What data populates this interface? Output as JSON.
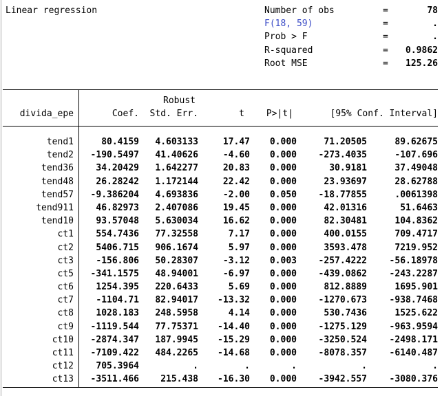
{
  "title": "Linear regression",
  "colors": {
    "background": "#ffffff",
    "text": "#000000",
    "link_blue": "#3a4bc6",
    "rule": "#000000",
    "window_border": "#a8a8a8"
  },
  "stats": [
    {
      "label": "Number of obs",
      "eq": "=",
      "value": "78",
      "link": false
    },
    {
      "label": "F(18, 59)",
      "eq": "=",
      "value": ".",
      "link": true
    },
    {
      "label": "Prob > F",
      "eq": "=",
      "value": ".",
      "link": false
    },
    {
      "label": "R-squared",
      "eq": "=",
      "value": "0.9862",
      "link": false
    },
    {
      "label": "Root MSE",
      "eq": "=",
      "value": "125.26",
      "link": false
    }
  ],
  "table": {
    "depvar": "divida_epe",
    "header_top": "Robust",
    "columns": {
      "coef": "Coef.",
      "se": "Std. Err.",
      "t": "t",
      "p": "P>|t|",
      "ci": "[95% Conf. Interval]"
    },
    "rows": [
      {
        "var": "tend1",
        "coef": "80.4159",
        "se": "4.603133",
        "t": "17.47",
        "p": "0.000",
        "lo": "71.20505",
        "hi": "89.62675"
      },
      {
        "var": "tend2",
        "coef": "-190.5497",
        "se": "41.40626",
        "t": "-4.60",
        "p": "0.000",
        "lo": "-273.4035",
        "hi": "-107.696"
      },
      {
        "var": "tend36",
        "coef": "34.20429",
        "se": "1.642277",
        "t": "20.83",
        "p": "0.000",
        "lo": "30.9181",
        "hi": "37.49048"
      },
      {
        "var": "tend48",
        "coef": "26.28242",
        "se": "1.172144",
        "t": "22.42",
        "p": "0.000",
        "lo": "23.93697",
        "hi": "28.62788"
      },
      {
        "var": "tend57",
        "coef": "-9.386204",
        "se": "4.693836",
        "t": "-2.00",
        "p": "0.050",
        "lo": "-18.77855",
        "hi": ".0061398"
      },
      {
        "var": "tend911",
        "coef": "46.82973",
        "se": "2.407086",
        "t": "19.45",
        "p": "0.000",
        "lo": "42.01316",
        "hi": "51.6463"
      },
      {
        "var": "tend10",
        "coef": "93.57048",
        "se": "5.630034",
        "t": "16.62",
        "p": "0.000",
        "lo": "82.30481",
        "hi": "104.8362"
      },
      {
        "var": "ct1",
        "coef": "554.7436",
        "se": "77.32558",
        "t": "7.17",
        "p": "0.000",
        "lo": "400.0155",
        "hi": "709.4717"
      },
      {
        "var": "ct2",
        "coef": "5406.715",
        "se": "906.1674",
        "t": "5.97",
        "p": "0.000",
        "lo": "3593.478",
        "hi": "7219.952"
      },
      {
        "var": "ct3",
        "coef": "-156.806",
        "se": "50.28307",
        "t": "-3.12",
        "p": "0.003",
        "lo": "-257.4222",
        "hi": "-56.18978"
      },
      {
        "var": "ct5",
        "coef": "-341.1575",
        "se": "48.94001",
        "t": "-6.97",
        "p": "0.000",
        "lo": "-439.0862",
        "hi": "-243.2287"
      },
      {
        "var": "ct6",
        "coef": "1254.395",
        "se": "220.6433",
        "t": "5.69",
        "p": "0.000",
        "lo": "812.8889",
        "hi": "1695.901"
      },
      {
        "var": "ct7",
        "coef": "-1104.71",
        "se": "82.94017",
        "t": "-13.32",
        "p": "0.000",
        "lo": "-1270.673",
        "hi": "-938.7468"
      },
      {
        "var": "ct8",
        "coef": "1028.183",
        "se": "248.5958",
        "t": "4.14",
        "p": "0.000",
        "lo": "530.7436",
        "hi": "1525.622"
      },
      {
        "var": "ct9",
        "coef": "-1119.544",
        "se": "77.75371",
        "t": "-14.40",
        "p": "0.000",
        "lo": "-1275.129",
        "hi": "-963.9594"
      },
      {
        "var": "ct10",
        "coef": "-2874.347",
        "se": "187.9945",
        "t": "-15.29",
        "p": "0.000",
        "lo": "-3250.524",
        "hi": "-2498.171"
      },
      {
        "var": "ct11",
        "coef": "-7109.422",
        "se": "484.2265",
        "t": "-14.68",
        "p": "0.000",
        "lo": "-8078.357",
        "hi": "-6140.487"
      },
      {
        "var": "ct12",
        "coef": "705.3964",
        "se": ".",
        "t": ".",
        "p": ".",
        "lo": ".",
        "hi": "."
      },
      {
        "var": "ct13",
        "coef": "-3511.466",
        "se": "215.438",
        "t": "-16.30",
        "p": "0.000",
        "lo": "-3942.557",
        "hi": "-3080.376"
      }
    ]
  }
}
